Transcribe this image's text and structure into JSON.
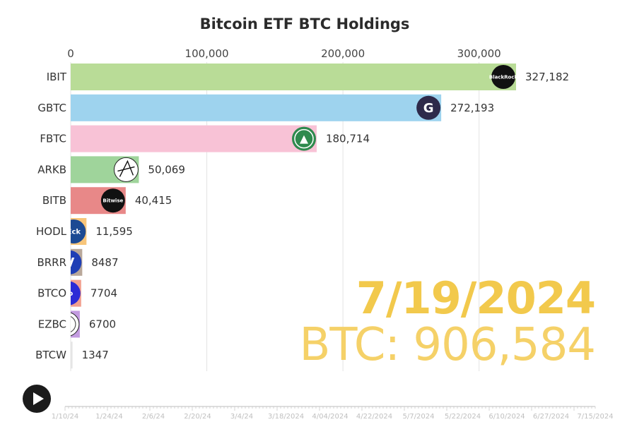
{
  "chart_data": {
    "type": "bar",
    "orientation": "horizontal",
    "title": "Bitcoin ETF BTC Holdings",
    "date": "7/19/2024",
    "total_label": "BTC: 906,584",
    "xlim": [
      0,
      327182
    ],
    "xticks": [
      {
        "value": 0,
        "label": "0"
      },
      {
        "value": 100000,
        "label": "100,000"
      },
      {
        "value": 200000,
        "label": "200,000"
      },
      {
        "value": 300000,
        "label": "300,000"
      }
    ],
    "grid": true,
    "bars": [
      {
        "name": "IBIT",
        "value": 327182,
        "label": "327,182",
        "color": "#b9dc97",
        "logo": "blackrock-logo-icon",
        "logo_text": "BlackRock",
        "logo_bg": "#111111",
        "logo_fg": "#ffffff"
      },
      {
        "name": "GBTC",
        "value": 272193,
        "label": "272,193",
        "color": "#9ed3ee",
        "logo": "grayscale-logo-icon",
        "logo_text": "G",
        "logo_bg": "#2e2a4a",
        "logo_fg": "#ffffff"
      },
      {
        "name": "FBTC",
        "value": 180714,
        "label": "180,714",
        "color": "#f8c2d6",
        "logo": "fidelity-logo-icon",
        "logo_text": "",
        "logo_bg": "#2f8a4e",
        "logo_fg": "#ffffff"
      },
      {
        "name": "ARKB",
        "value": 50069,
        "label": "50,069",
        "color": "#9fd49b",
        "logo": "ark-logo-icon",
        "logo_text": "",
        "logo_bg": "#ffffff",
        "logo_fg": "#111111"
      },
      {
        "name": "BITB",
        "value": 40415,
        "label": "40,415",
        "color": "#e88888",
        "logo": "bitwise-logo-icon",
        "logo_text": "Bitwise",
        "logo_bg": "#111111",
        "logo_fg": "#ffffff"
      },
      {
        "name": "HODL",
        "value": 11595,
        "label": "11,595",
        "color": "#f7c57a",
        "logo": "vaneck-logo-icon",
        "logo_text": "Eck",
        "logo_bg": "#1c4a93",
        "logo_fg": "#ffffff"
      },
      {
        "name": "BRRR",
        "value": 8487,
        "label": "8487",
        "color": "#b9a89a",
        "logo": "valkyrie-logo-icon",
        "logo_text": "V",
        "logo_bg": "#1f3fb5",
        "logo_fg": "#ffffff"
      },
      {
        "name": "BTCO",
        "value": 7704,
        "label": "7704",
        "color": "#f2a090",
        "logo": "invesco-logo-icon",
        "logo_text": "co",
        "logo_bg": "#2c2bd6",
        "logo_fg": "#ffffff"
      },
      {
        "name": "EZBC",
        "value": 6700,
        "label": "6700",
        "color": "#c39be0",
        "logo": "franklin-logo-icon",
        "logo_text": "",
        "logo_bg": "#ffffff",
        "logo_fg": "#555555"
      },
      {
        "name": "BTCW",
        "value": 1347,
        "label": "1347",
        "color": "#e5e5e5",
        "logo": "",
        "logo_text": "",
        "logo_bg": "",
        "logo_fg": ""
      }
    ]
  },
  "timeline": {
    "play_label": "Play",
    "labels": [
      "1/10/24",
      "1/24/24",
      "2/6/24",
      "2/20/24",
      "3/4/24",
      "3/18/2024",
      "4/04/2024",
      "4/22/2024",
      "5/7/2024",
      "5/22/2024",
      "6/10/2024",
      "6/27/2024",
      "7/15/2024"
    ],
    "progress": 0.99
  },
  "colors": {
    "date": "#f2c94c",
    "total": "#f5d168",
    "grid": "#e3e3e3"
  }
}
